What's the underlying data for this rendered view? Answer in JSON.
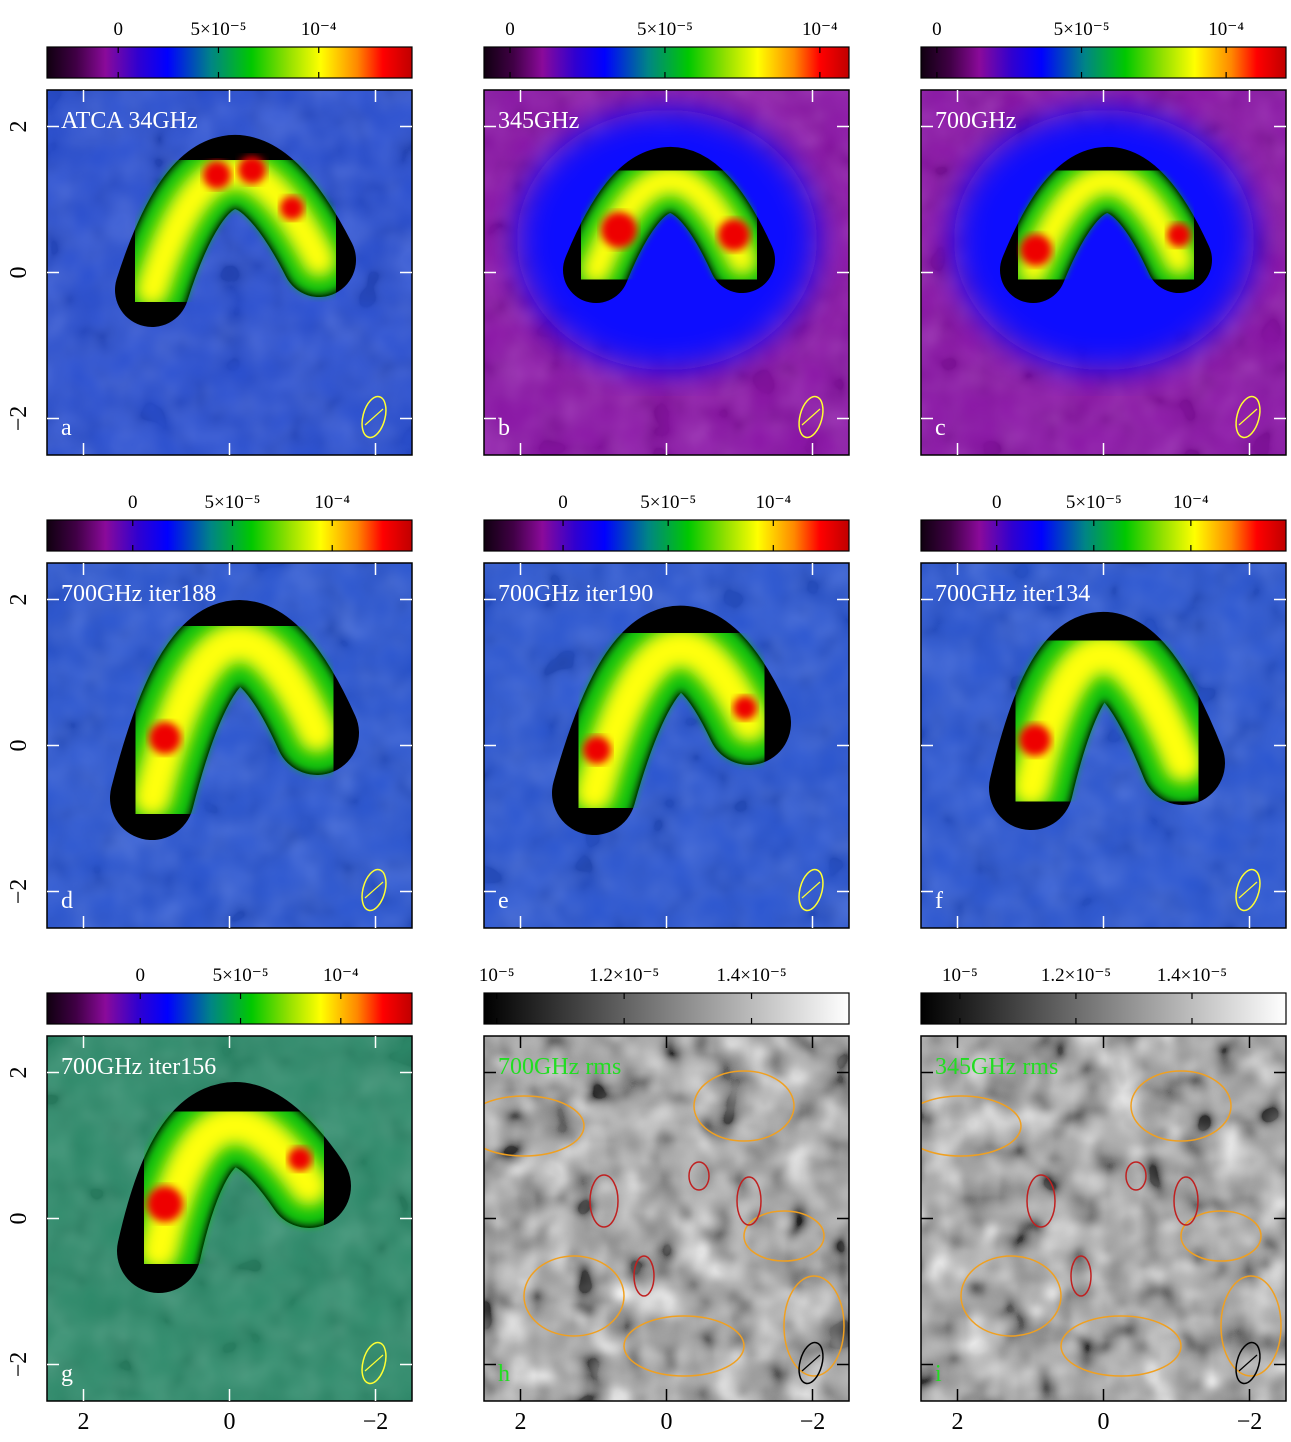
{
  "chart_data": [
    {
      "type": "image",
      "title": "ATCA 34GHz",
      "panel_label": "a",
      "colormap": "rainbow",
      "label_color": "#ffffff",
      "beam_color": "#ffff33",
      "colorbar_lim": [
        -3.55e-05,
        0.0001465
      ],
      "colorbar_ticks": [
        0,
        {
          "value": 5e-05,
          "label": "5×10⁻⁵"
        },
        {
          "value": 0.0001,
          "label": "10⁻⁴"
        }
      ],
      "xlim": [
        2.5,
        -2.5
      ],
      "ylim": [
        -2.5,
        2.5
      ],
      "xticks": [
        2,
        0,
        -2
      ],
      "yticks": [
        2,
        0,
        {
          "value": -2,
          "label": "−2"
        }
      ]
    },
    {
      "type": "image",
      "title": "345GHz",
      "panel_label": "b",
      "colormap": "rainbow",
      "label_color": "#ffffff",
      "beam_color": "#ffff33",
      "colorbar_lim": [
        -8.4e-06,
        0.0001094
      ],
      "colorbar_ticks": [
        0,
        {
          "value": 5e-05,
          "label": "5×10⁻⁵"
        },
        {
          "value": 0.0001,
          "label": "10⁻⁴"
        }
      ],
      "xlim": [
        2.5,
        -2.5
      ],
      "ylim": [
        -2.5,
        2.5
      ],
      "xticks": [
        2,
        0,
        -2
      ],
      "yticks": [
        2,
        0,
        -2
      ]
    },
    {
      "type": "image",
      "title": "700GHz",
      "panel_label": "c",
      "colormap": "rainbow",
      "label_color": "#ffffff",
      "beam_color": "#ffff33",
      "colorbar_lim": [
        -5.5e-06,
        0.0001207
      ],
      "colorbar_ticks": [
        0,
        {
          "value": 5e-05,
          "label": "5×10⁻⁵"
        },
        {
          "value": 0.0001,
          "label": "10⁻⁴"
        }
      ],
      "xlim": [
        2.5,
        -2.5
      ],
      "ylim": [
        -2.5,
        2.5
      ],
      "xticks": [
        2,
        0,
        -2
      ],
      "yticks": [
        2,
        0,
        -2
      ]
    },
    {
      "type": "image",
      "title": "700GHz iter188",
      "panel_label": "d",
      "colormap": "rainbow",
      "label_color": "#ffffff",
      "beam_color": "#ffff33",
      "colorbar_lim": [
        -4.3e-05,
        0.00014
      ],
      "colorbar_ticks": [
        0,
        {
          "value": 5e-05,
          "label": "5×10⁻⁵"
        },
        {
          "value": 0.0001,
          "label": "10⁻⁴"
        }
      ],
      "xlim": [
        2.5,
        -2.5
      ],
      "ylim": [
        -2.5,
        2.5
      ],
      "xticks": [
        2,
        0,
        -2
      ],
      "yticks": [
        2,
        0,
        {
          "value": -2,
          "label": "−2"
        }
      ]
    },
    {
      "type": "image",
      "title": "700GHz iter190",
      "panel_label": "e",
      "colormap": "rainbow",
      "label_color": "#ffffff",
      "beam_color": "#ffff33",
      "colorbar_lim": [
        -3.76e-05,
        0.000136
      ],
      "colorbar_ticks": [
        0,
        {
          "value": 5e-05,
          "label": "5×10⁻⁵"
        },
        {
          "value": 0.0001,
          "label": "10⁻⁴"
        }
      ],
      "xlim": [
        2.5,
        -2.5
      ],
      "ylim": [
        -2.5,
        2.5
      ],
      "xticks": [
        2,
        0,
        -2
      ],
      "yticks": [
        2,
        0,
        -2
      ]
    },
    {
      "type": "image",
      "title": "700GHz iter134",
      "panel_label": "f",
      "colormap": "rainbow",
      "label_color": "#ffffff",
      "beam_color": "#ffff33",
      "colorbar_lim": [
        -3.9e-05,
        0.000149
      ],
      "colorbar_ticks": [
        0,
        {
          "value": 5e-05,
          "label": "5×10⁻⁵"
        },
        {
          "value": 0.0001,
          "label": "10⁻⁴"
        }
      ],
      "xlim": [
        2.5,
        -2.5
      ],
      "ylim": [
        -2.5,
        2.5
      ],
      "xticks": [
        2,
        0,
        -2
      ],
      "yticks": [
        2,
        0,
        -2
      ]
    },
    {
      "type": "image",
      "title": "700GHz iter156",
      "panel_label": "g",
      "colormap": "rainbow",
      "label_color": "#ffffff",
      "beam_color": "#ffff33",
      "colorbar_lim": [
        -4.65e-05,
        0.0001355
      ],
      "colorbar_ticks": [
        0,
        {
          "value": 5e-05,
          "label": "5×10⁻⁵"
        },
        {
          "value": 0.0001,
          "label": "10⁻⁴"
        }
      ],
      "xlim": [
        2.5,
        -2.5
      ],
      "ylim": [
        -2.5,
        2.5
      ],
      "xticks": [
        2,
        0,
        {
          "value": -2,
          "label": "−2"
        }
      ],
      "yticks": [
        2,
        0,
        {
          "value": -2,
          "label": "−2"
        }
      ]
    },
    {
      "type": "image",
      "title": "700GHz rms",
      "panel_label": "h",
      "colormap": "grey",
      "label_color": "#22dd22",
      "beam_color": "#000000",
      "colorbar_lim": [
        9.8e-06,
        1.553e-05
      ],
      "colorbar_ticks": [
        {
          "value": 1e-05,
          "label": "10⁻⁵"
        },
        {
          "value": 1.2e-05,
          "label": "1.2×10⁻⁵"
        },
        {
          "value": 1.4e-05,
          "label": "1.4×10⁻⁵"
        }
      ],
      "xlim": [
        2.5,
        -2.5
      ],
      "ylim": [
        -2.5,
        2.5
      ],
      "xticks": [
        2,
        0,
        {
          "value": -2,
          "label": "−2"
        }
      ],
      "yticks": [
        2,
        0,
        -2
      ]
    },
    {
      "type": "image",
      "title": "345GHz rms",
      "panel_label": "i",
      "colormap": "grey",
      "label_color": "#22dd22",
      "beam_color": "#000000",
      "colorbar_lim": [
        9.33e-06,
        1.562e-05
      ],
      "colorbar_ticks": [
        {
          "value": 1e-05,
          "label": "10⁻⁵"
        },
        {
          "value": 1.2e-05,
          "label": "1.2×10⁻⁵"
        },
        {
          "value": 1.4e-05,
          "label": "1.4×10⁻⁵"
        }
      ],
      "xlim": [
        2.5,
        -2.5
      ],
      "ylim": [
        -2.5,
        2.5
      ],
      "xticks": [
        2,
        0,
        {
          "value": -2,
          "label": "−2"
        }
      ],
      "yticks": [
        2,
        0,
        -2
      ]
    }
  ]
}
